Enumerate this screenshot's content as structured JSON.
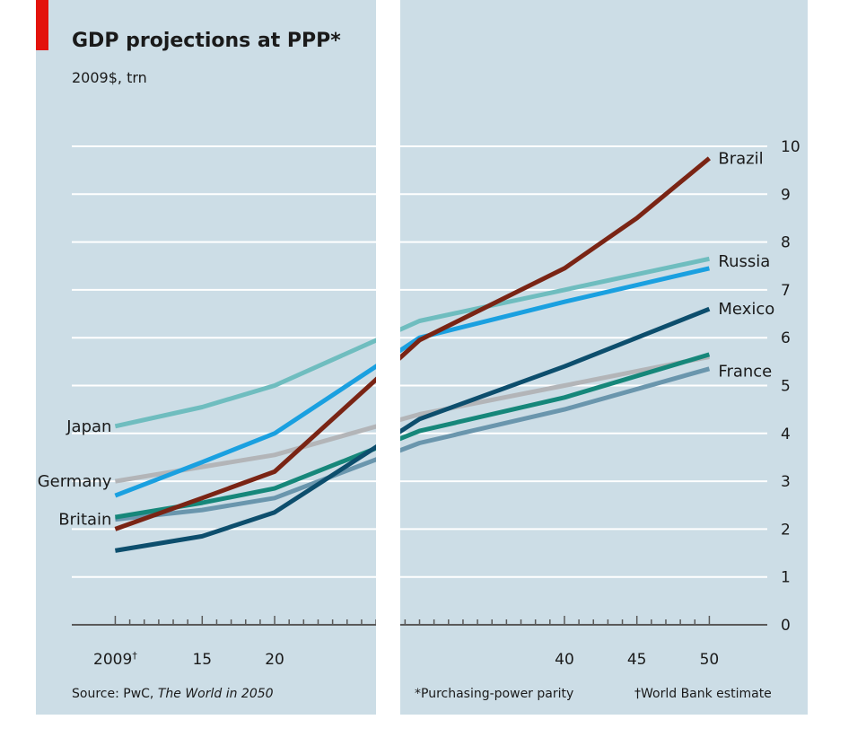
{
  "chart_data": {
    "type": "line",
    "title": "GDP projections at PPP*",
    "subtitle": "2009$, trn",
    "xlim": [
      2006,
      2054
    ],
    "ylim": [
      0,
      10
    ],
    "x_ticks": [
      {
        "value": 2009,
        "label": "2009",
        "marker": "†"
      },
      {
        "value": 2015,
        "label": "15"
      },
      {
        "value": 2020,
        "label": "20"
      },
      {
        "value": 2040,
        "label": "40"
      },
      {
        "value": 2045,
        "label": "45"
      },
      {
        "value": 2050,
        "label": "50"
      }
    ],
    "y_ticks": [
      0,
      1,
      2,
      3,
      4,
      5,
      6,
      7,
      8,
      9,
      10
    ],
    "grid": true,
    "series": [
      {
        "name": "Japan",
        "color": "#6fbdbf",
        "x": [
          2009,
          2015,
          2020,
          2030,
          2040,
          2050
        ],
        "y": [
          4.15,
          4.55,
          5.0,
          6.35,
          7.0,
          7.65
        ],
        "label_side": "left"
      },
      {
        "name": "Germany",
        "color": "#b3b5b8",
        "x": [
          2009,
          2015,
          2020,
          2030,
          2040,
          2050
        ],
        "y": [
          3.0,
          3.3,
          3.55,
          4.4,
          5.0,
          5.6
        ],
        "label_side": "left"
      },
      {
        "name": "Britain",
        "color": "#6a96ad",
        "x": [
          2009,
          2015,
          2020,
          2030,
          2040,
          2050
        ],
        "y": [
          2.2,
          2.4,
          2.65,
          3.8,
          4.5,
          5.35
        ],
        "label_side": "left"
      },
      {
        "name": "",
        "color": "#1aa0e0",
        "x": [
          2009,
          2015,
          2020,
          2030,
          2040,
          2050
        ],
        "y": [
          2.7,
          3.4,
          4.0,
          6.0,
          6.75,
          7.45
        ]
      },
      {
        "name": "",
        "color": "#16877a",
        "x": [
          2009,
          2015,
          2020,
          2030,
          2040,
          2050
        ],
        "y": [
          2.25,
          2.55,
          2.85,
          4.05,
          4.75,
          5.65
        ]
      },
      {
        "name": "Brazil",
        "color": "#7a2414",
        "x": [
          2009,
          2015,
          2020,
          2030,
          2040,
          2045,
          2050
        ],
        "y": [
          2.0,
          2.65,
          3.2,
          5.95,
          7.45,
          8.5,
          9.75
        ],
        "label_side": "right"
      },
      {
        "name": "Russia",
        "color": "#6fbdbf",
        "x": [],
        "y": [],
        "label_side": "right",
        "label_y": 7.6
      },
      {
        "name": "Mexico",
        "color": "#0d4e6d",
        "x": [
          2009,
          2015,
          2020,
          2030,
          2040,
          2050
        ],
        "y": [
          1.55,
          1.85,
          2.35,
          4.3,
          5.4,
          6.6
        ],
        "label_side": "right"
      },
      {
        "name": "France",
        "color": "#6a96ad",
        "x": [],
        "y": [],
        "label_side": "right",
        "label_y": 5.3
      }
    ],
    "notes": {
      "source_prefix": "Source: PwC,",
      "source_title": "The World in 2050",
      "footnote_ppp": "*Purchasing-power parity",
      "footnote_wb": "†World Bank estimate"
    },
    "colors": {
      "panel_bg": "#ccdde6",
      "grid": "#ffffff",
      "axis": "#5a5a5a",
      "accent": "#e3120b"
    }
  }
}
